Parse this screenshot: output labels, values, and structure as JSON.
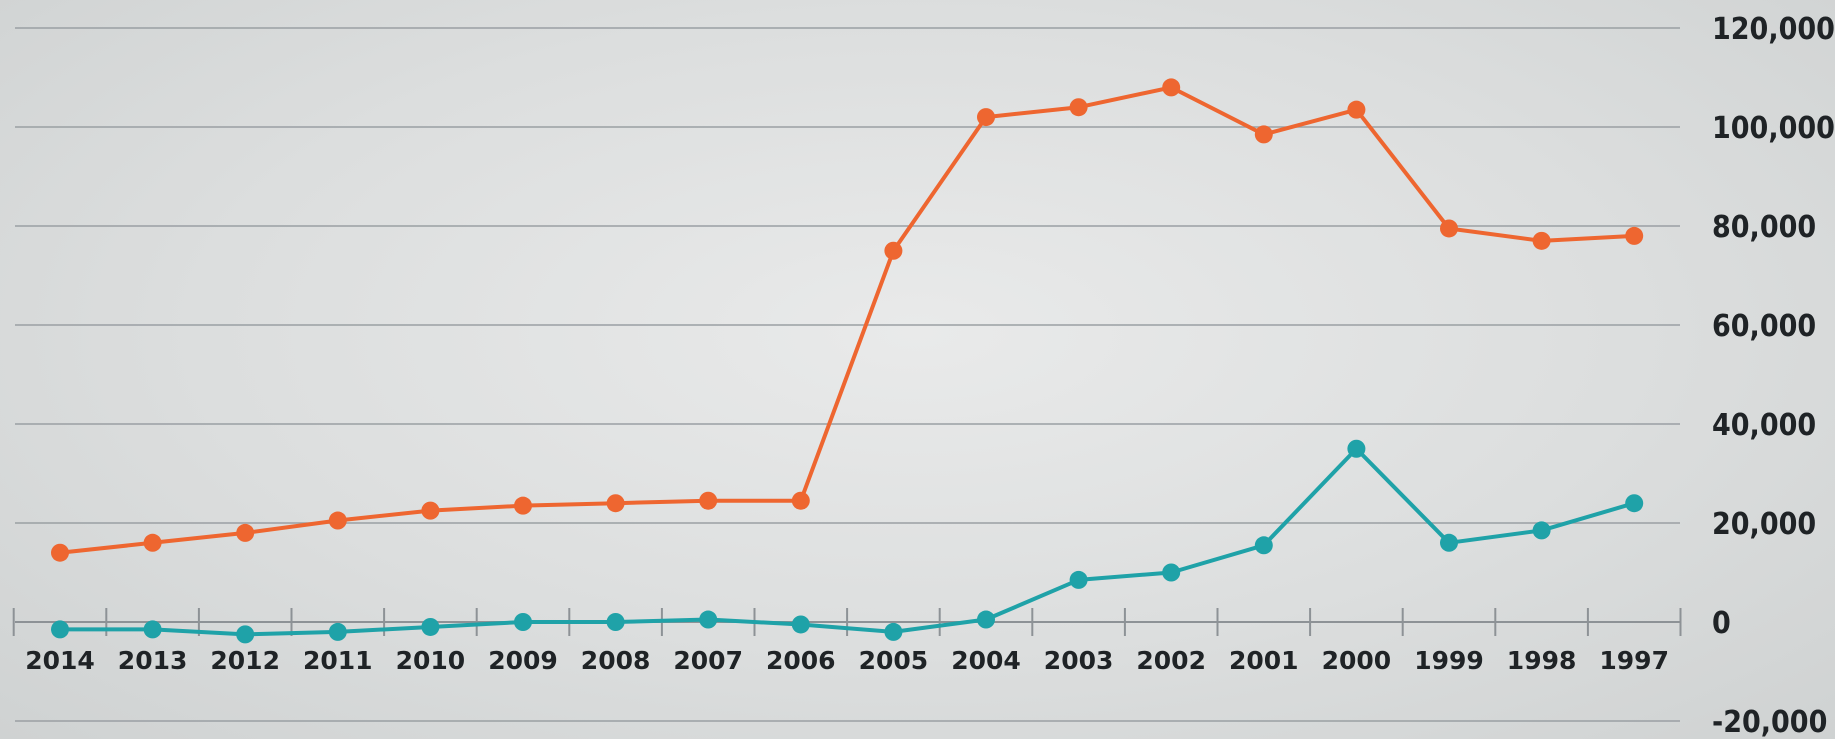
{
  "chart_data": {
    "type": "line",
    "title": "",
    "xlabel": "",
    "ylabel": "",
    "grid": true,
    "y_axis_side": "right",
    "ylim": [
      -20000,
      120000
    ],
    "yticks": [
      -20000,
      0,
      20000,
      40000,
      60000,
      80000,
      100000,
      120000
    ],
    "ytick_labels": [
      "-20,000",
      "0",
      "20,000",
      "40,000",
      "60,000",
      "80,000",
      "100,000",
      "120,000"
    ],
    "categories": [
      "2014",
      "2013",
      "2012",
      "2011",
      "2010",
      "2009",
      "2008",
      "2007",
      "2006",
      "2005",
      "2004",
      "2003",
      "2002",
      "2001",
      "2000",
      "1999",
      "1998",
      "1997"
    ],
    "series": [
      {
        "color": "#ee6630",
        "values": [
          14000,
          16000,
          18000,
          20500,
          22500,
          23500,
          24000,
          24500,
          24500,
          75000,
          102000,
          104000,
          108000,
          98500,
          103500,
          79500,
          77000,
          78000
        ]
      },
      {
        "color": "#1fa2a8",
        "values": [
          -1500,
          -1500,
          -2500,
          -2000,
          -1000,
          0,
          0,
          500,
          -500,
          -2000,
          500,
          8500,
          10000,
          15500,
          35000,
          16000,
          18500,
          24000
        ]
      }
    ]
  }
}
